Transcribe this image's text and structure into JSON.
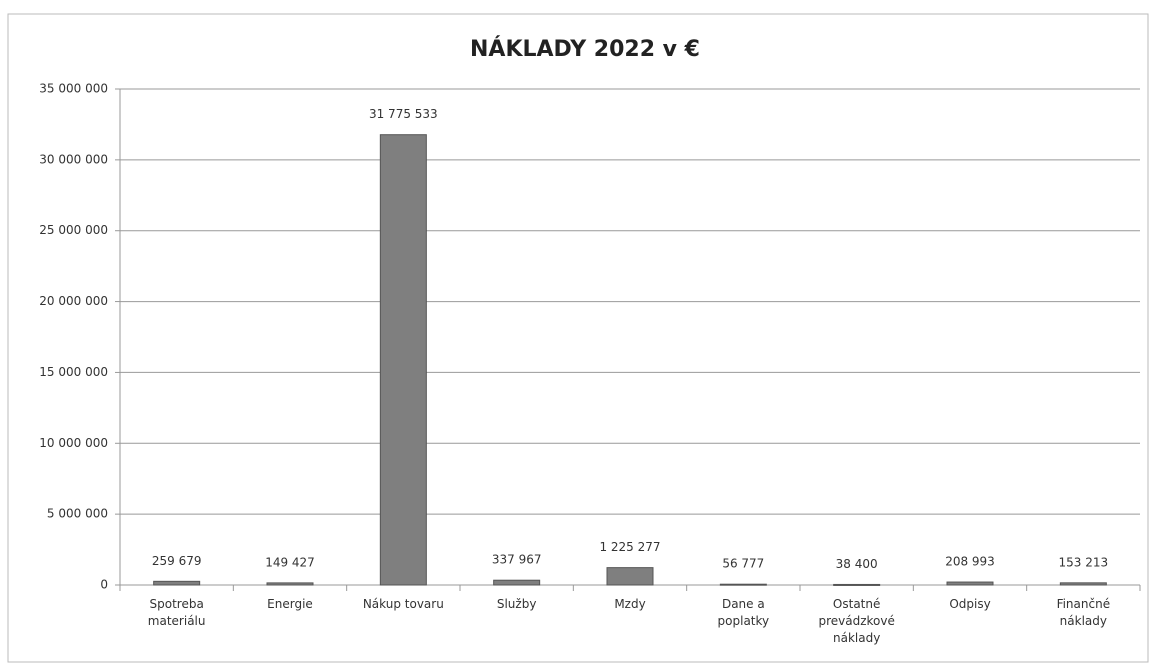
{
  "chart_data": {
    "type": "bar",
    "title": "NÁKLADY 2022 v €",
    "categories": [
      "Spotreba materiálu",
      "Energie",
      "Nákup tovaru",
      "Služby",
      "Mzdy",
      "Dane a poplatky",
      "Ostatné prevádzkové náklady",
      "Odpisy",
      "Finančné náklady"
    ],
    "values": [
      259679,
      149427,
      31775533,
      337967,
      1225277,
      56777,
      38400,
      208993,
      153213
    ],
    "value_labels": [
      "259 679",
      "149 427",
      "31 775 533",
      "337 967",
      "1 225 277",
      "56 777",
      "38 400",
      "208 993",
      "153 213"
    ],
    "color": "#7f7f7f",
    "ylim": [
      0,
      35000000
    ],
    "yticks": [
      0,
      {
        "value": 5000000,
        "label": "5 000 000"
      },
      {
        "value": 10000000,
        "label": "10 000 000"
      },
      {
        "value": 15000000,
        "label": "15 000 000"
      },
      {
        "value": 20000000,
        "label": "20 000 000"
      },
      {
        "value": 25000000,
        "label": "25 000 000"
      },
      {
        "value": 30000000,
        "label": "30 000 000"
      },
      {
        "value": 35000000,
        "label": "35 000 000"
      }
    ],
    "grid": true
  }
}
